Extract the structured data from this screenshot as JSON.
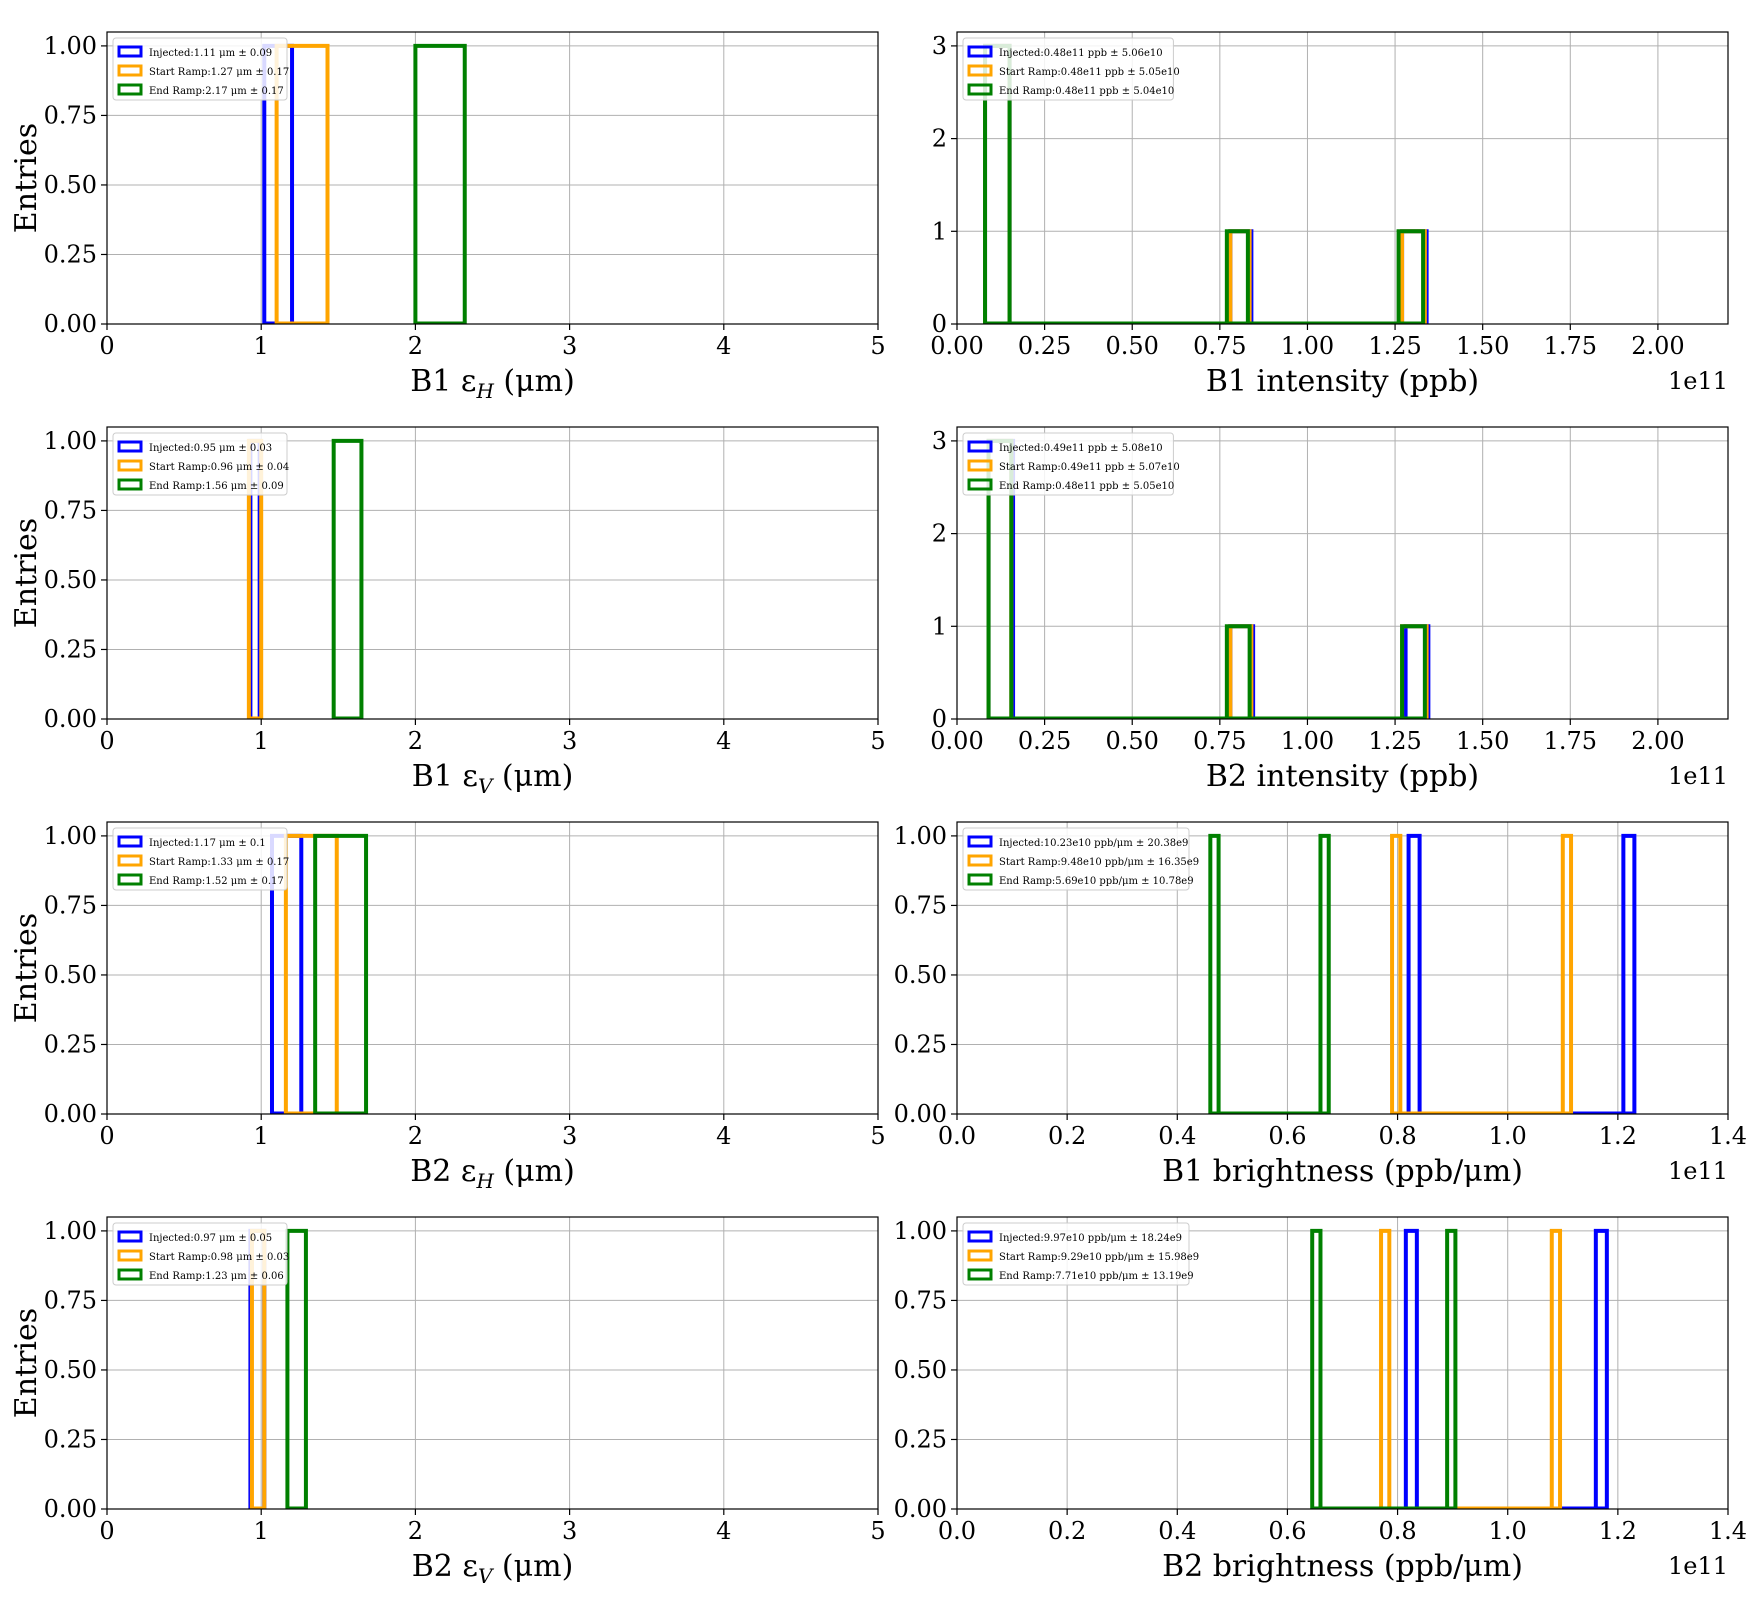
{
  "colors": {
    "injected": "#0000ff",
    "start_ramp": "#ffa500",
    "end_ramp": "#008000",
    "grid": "#b0b0b0"
  },
  "chart_data": [
    {
      "type": "histogram",
      "xlabel_prefix": "B1 ε",
      "xlabel_sub": "H",
      "xlabel_suffix": " (μm)",
      "ylabel": "Entries",
      "xlim": [
        0,
        5
      ],
      "ylim": [
        0,
        1.05
      ],
      "xticks": [
        "0",
        "1",
        "2",
        "3",
        "4",
        "5"
      ],
      "yticks": [
        "0.00",
        "0.25",
        "0.50",
        "0.75",
        "1.00"
      ],
      "xtick_values": [
        0,
        1,
        2,
        3,
        4,
        5
      ],
      "ytick_values": [
        0,
        0.25,
        0.5,
        0.75,
        1.0
      ],
      "offset_label": "",
      "grid": true,
      "legend_position": "upper-left",
      "series": [
        {
          "name": "Injected:1.11 μm ± 0.09",
          "color": "#0000ff",
          "bins": [
            [
              1.02,
              1.2,
              1
            ]
          ]
        },
        {
          "name": "Start Ramp:1.27 μm ± 0.17",
          "color": "#ffa500",
          "bins": [
            [
              1.1,
              1.43,
              1
            ]
          ]
        },
        {
          "name": "End Ramp:2.17 μm ± 0.17",
          "color": "#008000",
          "bins": [
            [
              2.0,
              2.32,
              1
            ]
          ]
        }
      ]
    },
    {
      "type": "histogram",
      "xlabel_prefix": "B1 intensity (ppb)",
      "xlabel_sub": "",
      "xlabel_suffix": "",
      "ylabel": "",
      "xlim": [
        0,
        2.2
      ],
      "ylim": [
        0,
        3.15
      ],
      "xticks": [
        "0.00",
        "0.25",
        "0.50",
        "0.75",
        "1.00",
        "1.25",
        "1.50",
        "1.75",
        "2.00"
      ],
      "yticks": [
        "0",
        "1",
        "2",
        "3"
      ],
      "xtick_values": [
        0,
        0.25,
        0.5,
        0.75,
        1.0,
        1.25,
        1.5,
        1.75,
        2.0
      ],
      "ytick_values": [
        0,
        1,
        2,
        3
      ],
      "offset_label": "1e11",
      "grid": true,
      "legend_position": "upper-left",
      "series": [
        {
          "name": "Injected:0.48e11 ppb ± 5.06e10",
          "color": "#0000ff",
          "bins": [
            [
              0.08,
              0.15,
              3
            ],
            [
              0.78,
              0.84,
              1
            ],
            [
              1.27,
              1.34,
              1
            ]
          ]
        },
        {
          "name": "Start Ramp:0.48e11 ppb ± 5.05e10",
          "color": "#ffa500",
          "bins": [
            [
              0.08,
              0.15,
              3
            ],
            [
              0.78,
              0.835,
              1
            ],
            [
              1.27,
              1.335,
              1
            ]
          ]
        },
        {
          "name": "End Ramp:0.48e11 ppb ± 5.04e10",
          "color": "#008000",
          "bins": [
            [
              0.08,
              0.15,
              3
            ],
            [
              0.77,
              0.83,
              1
            ],
            [
              1.26,
              1.33,
              1
            ]
          ]
        }
      ]
    },
    {
      "type": "histogram",
      "xlabel_prefix": "B1 ε",
      "xlabel_sub": "V",
      "xlabel_suffix": " (μm)",
      "ylabel": "Entries",
      "xlim": [
        0,
        5
      ],
      "ylim": [
        0,
        1.05
      ],
      "xticks": [
        "0",
        "1",
        "2",
        "3",
        "4",
        "5"
      ],
      "yticks": [
        "0.00",
        "0.25",
        "0.50",
        "0.75",
        "1.00"
      ],
      "xtick_values": [
        0,
        1,
        2,
        3,
        4,
        5
      ],
      "ytick_values": [
        0,
        0.25,
        0.5,
        0.75,
        1.0
      ],
      "offset_label": "",
      "grid": true,
      "legend_position": "upper-left",
      "series": [
        {
          "name": "Injected:0.95 μm ± 0.03",
          "color": "#0000ff",
          "bins": [
            [
              0.93,
              0.99,
              1
            ]
          ]
        },
        {
          "name": "Start Ramp:0.96 μm ± 0.04",
          "color": "#ffa500",
          "bins": [
            [
              0.92,
              1.0,
              1
            ]
          ]
        },
        {
          "name": "End Ramp:1.56 μm ± 0.09",
          "color": "#008000",
          "bins": [
            [
              1.47,
              1.65,
              1
            ]
          ]
        }
      ]
    },
    {
      "type": "histogram",
      "xlabel_prefix": "B2 intensity (ppb)",
      "xlabel_sub": "",
      "xlabel_suffix": "",
      "ylabel": "",
      "xlim": [
        0,
        2.2
      ],
      "ylim": [
        0,
        3.15
      ],
      "xticks": [
        "0.00",
        "0.25",
        "0.50",
        "0.75",
        "1.00",
        "1.25",
        "1.50",
        "1.75",
        "2.00"
      ],
      "yticks": [
        "0",
        "1",
        "2",
        "3"
      ],
      "xtick_values": [
        0,
        0.25,
        0.5,
        0.75,
        1.0,
        1.25,
        1.5,
        1.75,
        2.0
      ],
      "ytick_values": [
        0,
        1,
        2,
        3
      ],
      "offset_label": "1e11",
      "grid": true,
      "legend_position": "upper-left",
      "series": [
        {
          "name": "Injected:0.49e11 ppb ± 5.08e10",
          "color": "#0000ff",
          "bins": [
            [
              0.09,
              0.16,
              3
            ],
            [
              0.78,
              0.845,
              1
            ],
            [
              1.28,
              1.345,
              1
            ]
          ]
        },
        {
          "name": "Start Ramp:0.49e11 ppb ± 5.07e10",
          "color": "#ffa500",
          "bins": [
            [
              0.09,
              0.155,
              3
            ],
            [
              0.78,
              0.84,
              1
            ],
            [
              1.27,
              1.34,
              1
            ]
          ]
        },
        {
          "name": "End Ramp:0.48e11 ppb ± 5.05e10",
          "color": "#008000",
          "bins": [
            [
              0.09,
              0.155,
              3
            ],
            [
              0.77,
              0.835,
              1
            ],
            [
              1.27,
              1.335,
              1
            ]
          ]
        }
      ]
    },
    {
      "type": "histogram",
      "xlabel_prefix": "B2 ε",
      "xlabel_sub": "H",
      "xlabel_suffix": " (μm)",
      "ylabel": "Entries",
      "xlim": [
        0,
        5
      ],
      "ylim": [
        0,
        1.05
      ],
      "xticks": [
        "0",
        "1",
        "2",
        "3",
        "4",
        "5"
      ],
      "yticks": [
        "0.00",
        "0.25",
        "0.50",
        "0.75",
        "1.00"
      ],
      "xtick_values": [
        0,
        1,
        2,
        3,
        4,
        5
      ],
      "ytick_values": [
        0,
        0.25,
        0.5,
        0.75,
        1.0
      ],
      "offset_label": "",
      "grid": true,
      "legend_position": "upper-left",
      "series": [
        {
          "name": "Injected:1.17 μm ± 0.1",
          "color": "#0000ff",
          "bins": [
            [
              1.07,
              1.26,
              1
            ]
          ]
        },
        {
          "name": "Start Ramp:1.33 μm ± 0.17",
          "color": "#ffa500",
          "bins": [
            [
              1.16,
              1.49,
              1
            ]
          ]
        },
        {
          "name": "End Ramp:1.52 μm ± 0.17",
          "color": "#008000",
          "bins": [
            [
              1.35,
              1.68,
              1
            ]
          ]
        }
      ]
    },
    {
      "type": "histogram",
      "xlabel_prefix": "B1 brightness (ppb/μm)",
      "xlabel_sub": "",
      "xlabel_suffix": "",
      "ylabel": "",
      "xlim": [
        0,
        1.4
      ],
      "ylim": [
        0,
        1.05
      ],
      "xticks": [
        "0.0",
        "0.2",
        "0.4",
        "0.6",
        "0.8",
        "1.0",
        "1.2",
        "1.4"
      ],
      "yticks": [
        "0.00",
        "0.25",
        "0.50",
        "0.75",
        "1.00"
      ],
      "xtick_values": [
        0,
        0.2,
        0.4,
        0.6,
        0.8,
        1.0,
        1.2,
        1.4
      ],
      "ytick_values": [
        0,
        0.25,
        0.5,
        0.75,
        1.0
      ],
      "offset_label": "1e11",
      "grid": true,
      "legend_position": "upper-left",
      "series": [
        {
          "name": "Injected:10.23e10 ppb/μm ± 20.38e9",
          "color": "#0000ff",
          "bins": [
            [
              0.82,
              0.84,
              1
            ],
            [
              1.21,
              1.23,
              1
            ]
          ]
        },
        {
          "name": "Start Ramp:9.48e10 ppb/μm ± 16.35e9",
          "color": "#ffa500",
          "bins": [
            [
              0.79,
              0.805,
              1
            ],
            [
              1.1,
              1.115,
              1
            ]
          ]
        },
        {
          "name": "End Ramp:5.69e10 ppb/μm ± 10.78e9",
          "color": "#008000",
          "bins": [
            [
              0.46,
              0.475,
              1
            ],
            [
              0.66,
              0.675,
              1
            ]
          ]
        }
      ]
    },
    {
      "type": "histogram",
      "xlabel_prefix": "B2 ε",
      "xlabel_sub": "V",
      "xlabel_suffix": " (μm)",
      "ylabel": "Entries",
      "xlim": [
        0,
        5
      ],
      "ylim": [
        0,
        1.05
      ],
      "xticks": [
        "0",
        "1",
        "2",
        "3",
        "4",
        "5"
      ],
      "yticks": [
        "0.00",
        "0.25",
        "0.50",
        "0.75",
        "1.00"
      ],
      "xtick_values": [
        0,
        1,
        2,
        3,
        4,
        5
      ],
      "ytick_values": [
        0,
        0.25,
        0.5,
        0.75,
        1.0
      ],
      "offset_label": "",
      "grid": true,
      "legend_position": "upper-left",
      "series": [
        {
          "name": "Injected:0.97 μm ± 0.05",
          "color": "#0000ff",
          "bins": [
            [
              0.93,
              1.02,
              1
            ]
          ]
        },
        {
          "name": "Start Ramp:0.98 μm ± 0.03",
          "color": "#ffa500",
          "bins": [
            [
              0.94,
              1.02,
              1
            ]
          ]
        },
        {
          "name": "End Ramp:1.23 μm ± 0.06",
          "color": "#008000",
          "bins": [
            [
              1.17,
              1.29,
              1
            ]
          ]
        }
      ]
    },
    {
      "type": "histogram",
      "xlabel_prefix": "B2 brightness (ppb/μm)",
      "xlabel_sub": "",
      "xlabel_suffix": "",
      "ylabel": "",
      "xlim": [
        0,
        1.4
      ],
      "ylim": [
        0,
        1.05
      ],
      "xticks": [
        "0.0",
        "0.2",
        "0.4",
        "0.6",
        "0.8",
        "1.0",
        "1.2",
        "1.4"
      ],
      "yticks": [
        "0.00",
        "0.25",
        "0.50",
        "0.75",
        "1.00"
      ],
      "xtick_values": [
        0,
        0.2,
        0.4,
        0.6,
        0.8,
        1.0,
        1.2,
        1.4
      ],
      "ytick_values": [
        0,
        0.25,
        0.5,
        0.75,
        1.0
      ],
      "offset_label": "1e11",
      "grid": true,
      "legend_position": "upper-left",
      "series": [
        {
          "name": "Injected:9.97e10 ppb/μm ± 18.24e9",
          "color": "#0000ff",
          "bins": [
            [
              0.815,
              0.835,
              1
            ],
            [
              1.16,
              1.18,
              1
            ]
          ]
        },
        {
          "name": "Start Ramp:9.29e10 ppb/μm ± 15.98e9",
          "color": "#ffa500",
          "bins": [
            [
              0.77,
              0.785,
              1
            ],
            [
              1.08,
              1.095,
              1
            ]
          ]
        },
        {
          "name": "End Ramp:7.71e10 ppb/μm ± 13.19e9",
          "color": "#008000",
          "bins": [
            [
              0.645,
              0.66,
              1
            ],
            [
              0.89,
              0.905,
              1
            ]
          ]
        }
      ]
    }
  ]
}
